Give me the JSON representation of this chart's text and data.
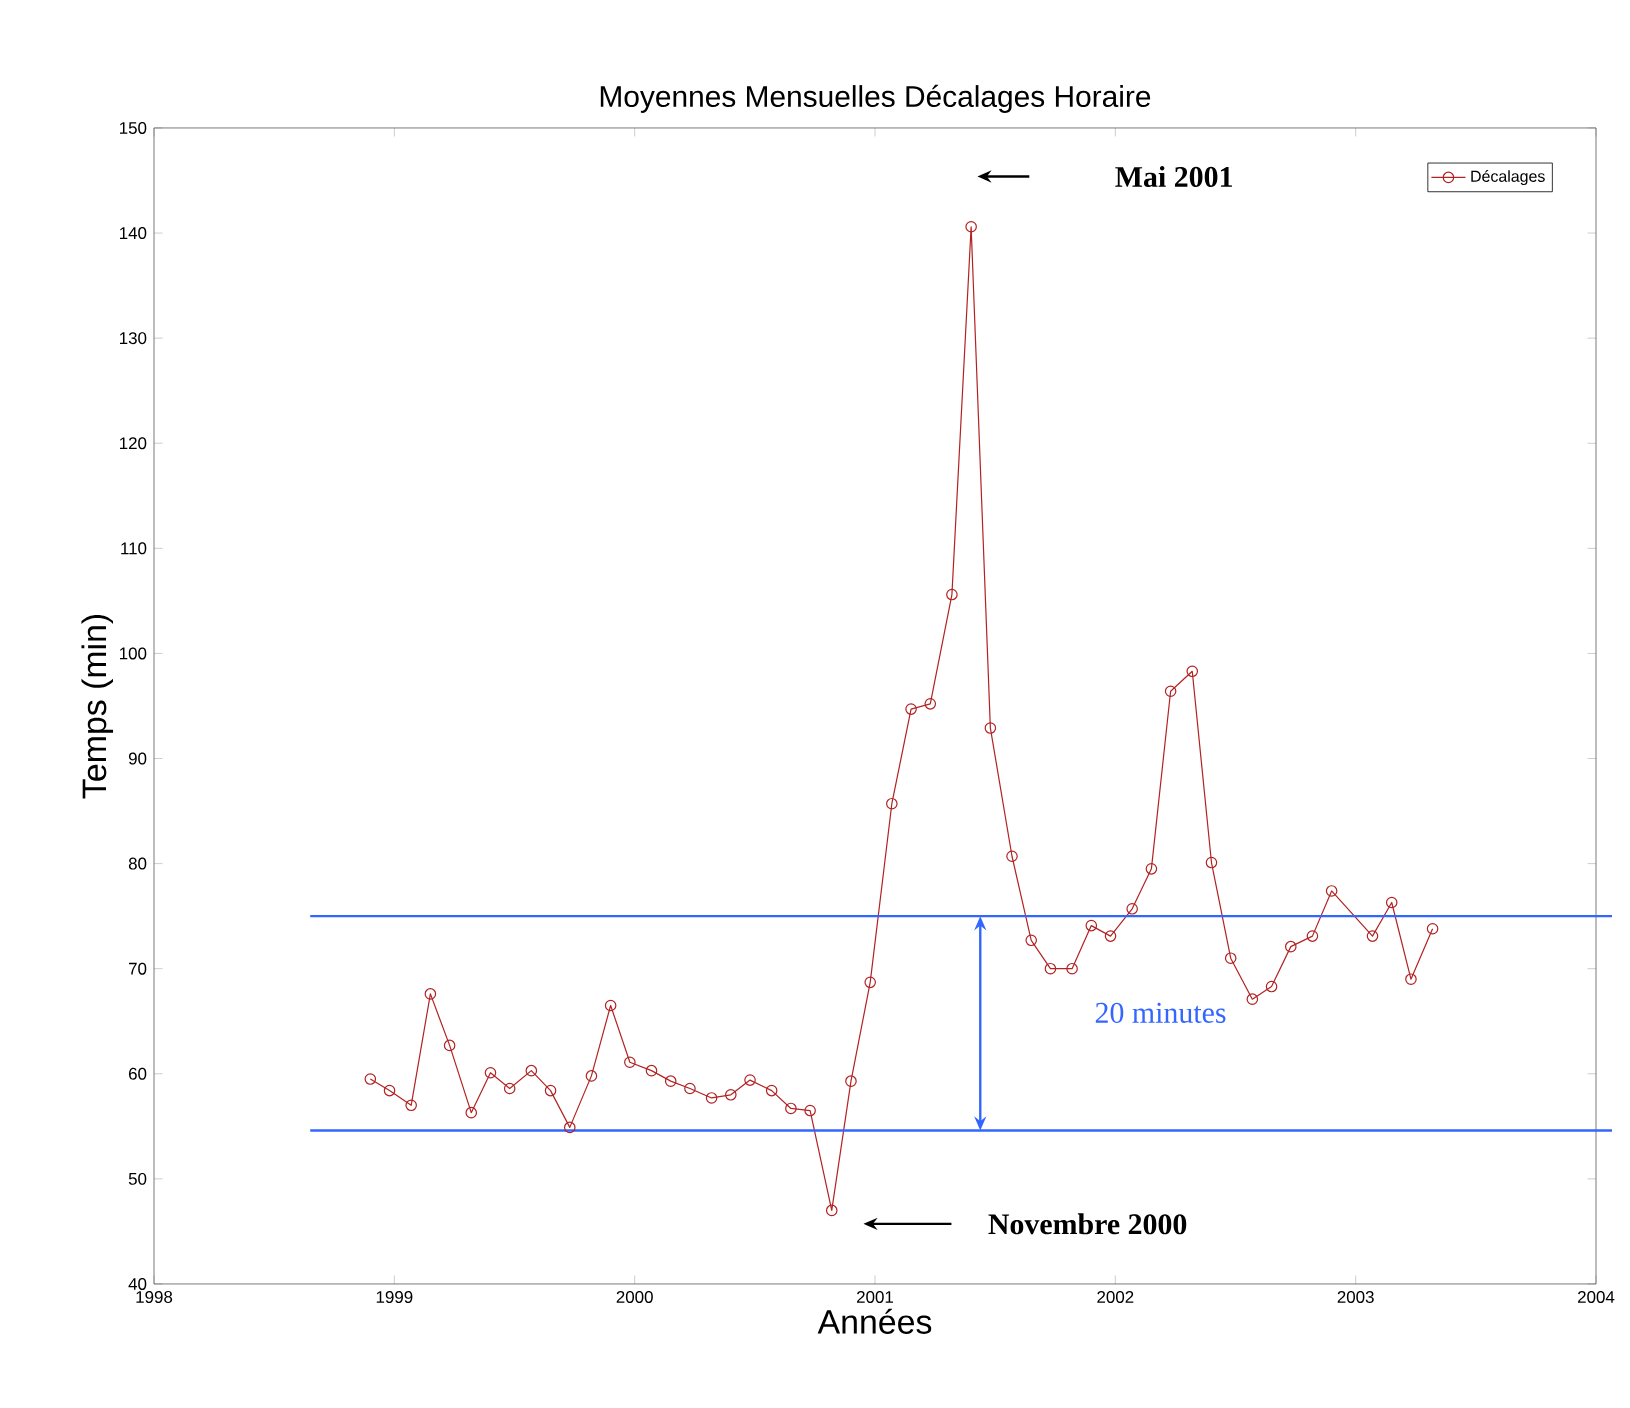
{
  "chart_data": {
    "type": "line",
    "title": "Moyennes Mensuelles Décalages Horaire",
    "xlabel": "Années",
    "ylabel": "Temps (min)",
    "x": [
      1998.9,
      1998.98,
      1999.07,
      1999.15,
      1999.23,
      1999.32,
      1999.4,
      1999.48,
      1999.57,
      1999.65,
      1999.73,
      1999.82,
      1999.9,
      1999.98,
      2000.07,
      2000.15,
      2000.23,
      2000.32,
      2000.4,
      2000.48,
      2000.57,
      2000.65,
      2000.73,
      2000.82,
      2000.9,
      2000.98,
      2001.07,
      2001.15,
      2001.23,
      2001.32,
      2001.4,
      2001.48,
      2001.57,
      2001.65,
      2001.73,
      2001.82,
      2001.9,
      2001.98,
      2002.07,
      2002.15,
      2002.23,
      2002.32,
      2002.4,
      2002.48,
      2002.57,
      2002.65,
      2002.73,
      2002.82,
      2002.9,
      2003.07,
      2003.15,
      2003.23,
      2003.32
    ],
    "series": [
      {
        "name": "Décalages",
        "color": "#b22222",
        "values": [
          59.5,
          58.4,
          57.0,
          67.6,
          62.7,
          56.3,
          60.1,
          58.6,
          60.3,
          58.4,
          54.9,
          59.8,
          66.5,
          61.1,
          60.3,
          59.3,
          58.6,
          57.7,
          58.0,
          59.4,
          58.4,
          56.7,
          56.5,
          47.0,
          59.3,
          68.7,
          85.7,
          94.7,
          95.2,
          105.6,
          140.6,
          92.9,
          80.7,
          72.7,
          70.0,
          70.0,
          74.1,
          73.1,
          75.7,
          79.5,
          96.4,
          98.3,
          80.1,
          71.0,
          67.1,
          68.3,
          72.1,
          73.1,
          77.4,
          73.1,
          76.3,
          69.0,
          73.8
        ]
      }
    ],
    "xlim": [
      1998,
      2004
    ],
    "ylim": [
      40,
      150
    ],
    "xticks": [
      1998,
      1999,
      2000,
      2001,
      2002,
      2003,
      2004
    ],
    "yticks": [
      40,
      50,
      60,
      70,
      80,
      90,
      100,
      110,
      120,
      130,
      140,
      150
    ],
    "ref_lines": [
      {
        "axis": "y",
        "value": 75,
        "color": "#3366ff"
      },
      {
        "axis": "y",
        "value": 54.6,
        "color": "#3366ff"
      }
    ],
    "annotations": [
      "Mai 2001",
      "Novembre 2000",
      "20 minutes"
    ],
    "marker": "circle",
    "line_style": "solid",
    "legend": "top right",
    "grid": false
  }
}
